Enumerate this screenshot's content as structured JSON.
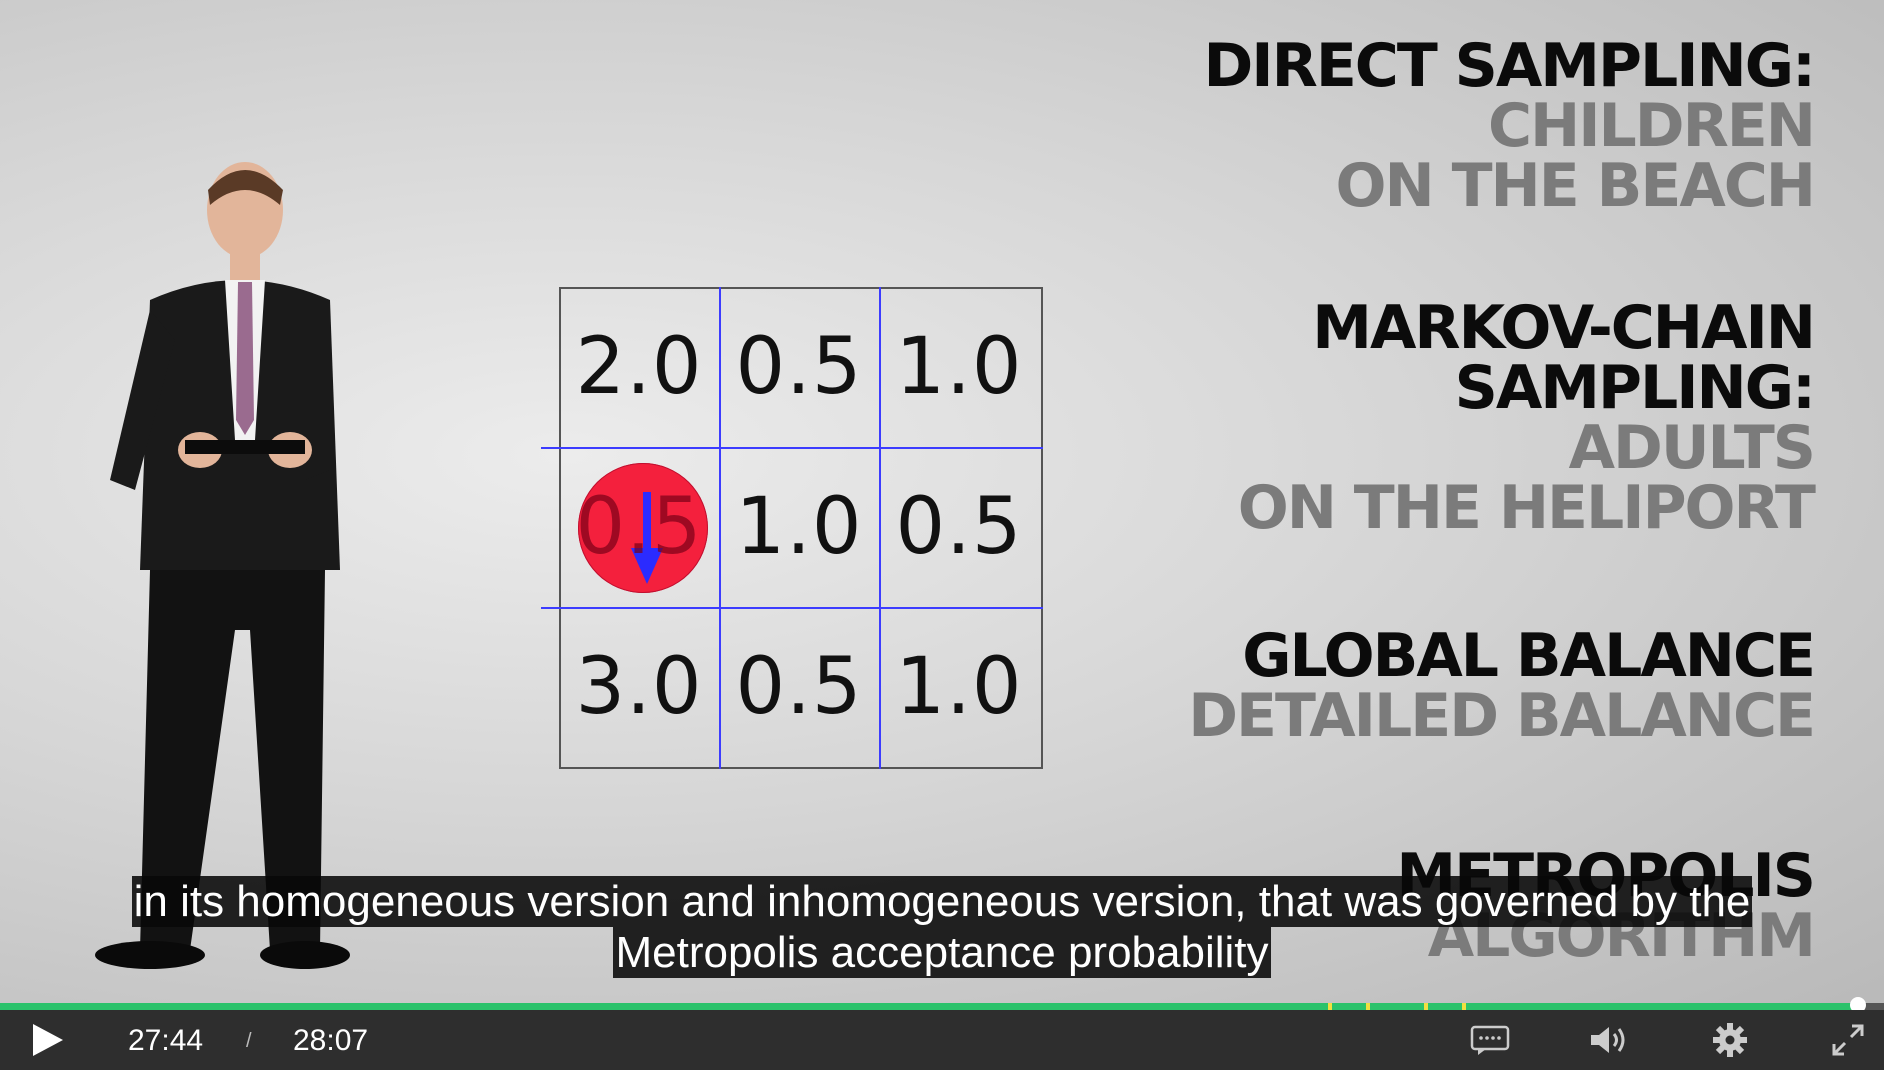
{
  "grid": {
    "cells": [
      "2.0",
      "0.5",
      "1.0",
      "0.5",
      "1.0",
      "0.5",
      "3.0",
      "0.5",
      "1.0"
    ]
  },
  "headings": [
    {
      "black": "DIRECT SAMPLING:",
      "gray": [
        "CHILDREN",
        "ON THE BEACH"
      ]
    },
    {
      "black": "MARKOV-CHAIN",
      "black2": "SAMPLING:",
      "gray": [
        "ADULTS",
        "ON THE HELIPORT"
      ]
    },
    {
      "black": "GLOBAL BALANCE",
      "gray": [
        "DETAILED BALANCE"
      ]
    },
    {
      "black": "METROPOLIS",
      "gray": [
        "ALGORITHM"
      ]
    }
  ],
  "captions": {
    "line1": "in its homogeneous version and inhomogeneous version, that was governed by the",
    "line2": "Metropolis acceptance probability"
  },
  "player": {
    "current_time": "27:44",
    "separator": "/",
    "duration": "28:07",
    "progress_fraction": 0.9864,
    "accent_color": "#2bc26b",
    "icons": [
      "play-icon",
      "captions-icon",
      "volume-icon",
      "settings-icon",
      "fullscreen-icon"
    ]
  }
}
